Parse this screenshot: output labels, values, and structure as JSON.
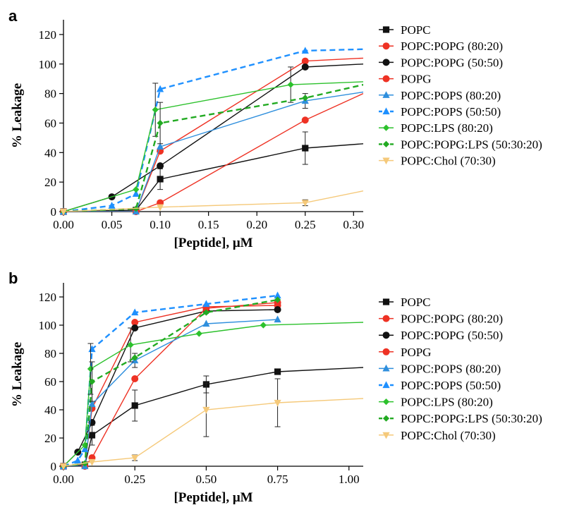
{
  "panels": [
    "a",
    "b"
  ],
  "chart_data": [
    {
      "type": "line",
      "panel": "a",
      "xlabel": "[Peptide], μM",
      "ylabel": "% Leakage",
      "xlim": [
        0,
        0.31
      ],
      "ylim": [
        0,
        130
      ],
      "xticks": [
        "0.00",
        "0.05",
        "0.10",
        "0.15",
        "0.20",
        "0.25",
        "0.30"
      ],
      "xtick_values": [
        0,
        0.05,
        0.1,
        0.15,
        0.2,
        0.25,
        0.3
      ],
      "yticks": [
        "0",
        "20",
        "40",
        "60",
        "80",
        "100",
        "120"
      ],
      "ytick_values": [
        0,
        20,
        40,
        60,
        80,
        100,
        120
      ],
      "legend_position": "right",
      "series": [
        {
          "name": "POPC",
          "color": "#111111",
          "marker": "square",
          "dashed": false,
          "x": [
            0,
            0.075,
            0.1,
            0.25
          ],
          "y": [
            0,
            1,
            22,
            43
          ],
          "err": [
            0,
            0,
            7,
            11
          ],
          "fit_x": [
            0,
            0.075,
            0.1,
            0.25,
            0.31
          ],
          "fit_y": [
            0,
            1,
            22,
            43,
            46
          ]
        },
        {
          "name": "POPC:POPG (80:20)",
          "color": "#ee3224",
          "marker": "circle",
          "dashed": false,
          "x": [
            0,
            0.075,
            0.1,
            0.25
          ],
          "y": [
            0,
            0,
            41,
            102
          ],
          "err": [
            0,
            0,
            0,
            0
          ],
          "fit_x": [
            0,
            0.075,
            0.1,
            0.25,
            0.31
          ],
          "fit_y": [
            0,
            0,
            41,
            102,
            104
          ]
        },
        {
          "name": "POPC:POPG (50:50)",
          "color": "#111111",
          "marker": "circle",
          "dashed": false,
          "x": [
            0,
            0.05,
            0.1,
            0.25
          ],
          "y": [
            0,
            10,
            31,
            98
          ],
          "err": [
            0,
            0,
            0,
            0
          ],
          "fit_x": [
            0,
            0.05,
            0.1,
            0.25,
            0.31
          ],
          "fit_y": [
            0,
            10,
            31,
            98,
            100
          ]
        },
        {
          "name": "POPG",
          "color": "#ee3224",
          "marker": "circle",
          "dashed": false,
          "x": [
            0,
            0.075,
            0.1,
            0.25
          ],
          "y": [
            0,
            0,
            6,
            62
          ],
          "err": [
            0,
            0,
            0,
            0
          ],
          "fit_x": [
            0,
            0.075,
            0.1,
            0.25,
            0.31
          ],
          "fit_y": [
            0,
            0,
            6,
            62,
            80
          ]
        },
        {
          "name": "POPC:POPS (80:20)",
          "color": "#2f8fdd",
          "marker": "triangle",
          "dashed": false,
          "x": [
            0,
            0.075,
            0.1,
            0.25
          ],
          "y": [
            0,
            0,
            44,
            75
          ],
          "err": [
            0,
            0,
            0,
            5
          ],
          "fit_x": [
            0,
            0.075,
            0.1,
            0.25,
            0.31
          ],
          "fit_y": [
            0,
            0,
            44,
            75,
            81
          ]
        },
        {
          "name": "POPC:POPS (50:50)",
          "color": "#1e90ff",
          "marker": "triangle",
          "dashed": true,
          "x": [
            0,
            0.05,
            0.075,
            0.1,
            0.25
          ],
          "y": [
            0,
            4,
            12,
            83,
            109
          ],
          "err": [
            0,
            0,
            0,
            0,
            0
          ],
          "fit_x": [
            0,
            0.05,
            0.075,
            0.1,
            0.25,
            0.31
          ],
          "fit_y": [
            0,
            4,
            12,
            83,
            109,
            110
          ]
        },
        {
          "name": "POPC:LPS (80:20)",
          "color": "#2cc12c",
          "marker": "diamond",
          "dashed": false,
          "x": [
            0,
            0.075,
            0.095,
            0.235
          ],
          "y": [
            0,
            15,
            69,
            86
          ],
          "err": [
            0,
            0,
            18,
            12
          ],
          "fit_x": [
            0,
            0.075,
            0.095,
            0.235,
            0.31
          ],
          "fit_y": [
            0,
            15,
            69,
            86,
            88
          ]
        },
        {
          "name": "POPC:POPG:LPS (50:30:20)",
          "color": "#22aa22",
          "marker": "diamond",
          "dashed": true,
          "x": [
            0,
            0.075,
            0.1,
            0.25
          ],
          "y": [
            0,
            2,
            60,
            77
          ],
          "err": [
            0,
            0,
            14,
            0
          ],
          "fit_x": [
            0,
            0.075,
            0.1,
            0.25,
            0.31
          ],
          "fit_y": [
            0,
            2,
            60,
            77,
            86
          ]
        },
        {
          "name": "POPC:Chol (70:30)",
          "color": "#f5c97a",
          "marker": "triangle-down",
          "dashed": false,
          "x": [
            0,
            0.1,
            0.25
          ],
          "y": [
            0,
            3,
            6
          ],
          "err": [
            0,
            0,
            2
          ],
          "fit_x": [
            0,
            0.1,
            0.25,
            0.31
          ],
          "fit_y": [
            0,
            3,
            6,
            14
          ]
        }
      ]
    },
    {
      "type": "line",
      "panel": "b",
      "xlabel": "[Peptide], μM",
      "ylabel": "% Leakage",
      "xlim": [
        0,
        1.05
      ],
      "ylim": [
        0,
        130
      ],
      "xticks": [
        "0.00",
        "0.25",
        "0.50",
        "0.75",
        "1.00"
      ],
      "xtick_values": [
        0,
        0.25,
        0.5,
        0.75,
        1.0
      ],
      "yticks": [
        "0",
        "20",
        "40",
        "60",
        "80",
        "100",
        "120"
      ],
      "ytick_values": [
        0,
        20,
        40,
        60,
        80,
        100,
        120
      ],
      "legend_position": "right",
      "series": [
        {
          "name": "POPC",
          "color": "#111111",
          "marker": "square",
          "dashed": false,
          "x": [
            0,
            0.075,
            0.1,
            0.25,
            0.5,
            0.75
          ],
          "y": [
            0,
            1,
            22,
            43,
            58,
            67
          ],
          "err": [
            0,
            0,
            7,
            11,
            6,
            2
          ],
          "fit_x": [
            0,
            0.075,
            0.1,
            0.25,
            0.5,
            0.75,
            1.05
          ],
          "fit_y": [
            0,
            1,
            22,
            43,
            58,
            67,
            70
          ]
        },
        {
          "name": "POPC:POPG (80:20)",
          "color": "#ee3224",
          "marker": "circle",
          "dashed": false,
          "x": [
            0,
            0.075,
            0.1,
            0.25,
            0.5,
            0.75
          ],
          "y": [
            0,
            0,
            41,
            102,
            113,
            114
          ],
          "err": [
            0,
            0,
            0,
            0,
            0,
            0
          ],
          "fit_x": [
            0,
            0.075,
            0.1,
            0.25,
            0.5,
            0.75
          ],
          "fit_y": [
            0,
            0,
            41,
            102,
            113,
            114
          ]
        },
        {
          "name": "POPC:POPG (50:50)",
          "color": "#111111",
          "marker": "circle",
          "dashed": false,
          "x": [
            0,
            0.05,
            0.1,
            0.25,
            0.5,
            0.75
          ],
          "y": [
            0,
            10,
            31,
            98,
            110,
            111
          ],
          "err": [
            0,
            0,
            0,
            0,
            0,
            0
          ],
          "fit_x": [
            0,
            0.05,
            0.1,
            0.25,
            0.5,
            0.75
          ],
          "fit_y": [
            0,
            10,
            31,
            98,
            110,
            111
          ]
        },
        {
          "name": "POPG",
          "color": "#ee3224",
          "marker": "circle",
          "dashed": false,
          "x": [
            0,
            0.075,
            0.1,
            0.25,
            0.5,
            0.75
          ],
          "y": [
            0,
            0,
            6,
            62,
            112,
            116
          ],
          "err": [
            0,
            0,
            0,
            0,
            0,
            0
          ],
          "fit_x": [
            0,
            0.075,
            0.1,
            0.25,
            0.5,
            0.75
          ],
          "fit_y": [
            0,
            0,
            6,
            62,
            112,
            116
          ]
        },
        {
          "name": "POPC:POPS (80:20)",
          "color": "#2f8fdd",
          "marker": "triangle",
          "dashed": false,
          "x": [
            0,
            0.075,
            0.1,
            0.25,
            0.5,
            0.75
          ],
          "y": [
            0,
            0,
            44,
            75,
            101,
            104
          ],
          "err": [
            0,
            0,
            0,
            5,
            0,
            0
          ],
          "fit_x": [
            0,
            0.075,
            0.1,
            0.25,
            0.5,
            0.75
          ],
          "fit_y": [
            0,
            0,
            44,
            75,
            101,
            104
          ]
        },
        {
          "name": "POPC:POPS (50:50)",
          "color": "#1e90ff",
          "marker": "triangle",
          "dashed": true,
          "x": [
            0,
            0.05,
            0.075,
            0.1,
            0.25,
            0.5,
            0.75
          ],
          "y": [
            0,
            4,
            12,
            83,
            109,
            115,
            121
          ],
          "err": [
            0,
            0,
            0,
            0,
            0,
            0,
            0
          ],
          "fit_x": [
            0,
            0.05,
            0.075,
            0.1,
            0.25,
            0.5,
            0.75
          ],
          "fit_y": [
            0,
            4,
            12,
            83,
            109,
            115,
            121
          ]
        },
        {
          "name": "POPC:LPS (80:20)",
          "color": "#2cc12c",
          "marker": "diamond",
          "dashed": false,
          "x": [
            0,
            0.075,
            0.095,
            0.235,
            0.475,
            0.7
          ],
          "y": [
            0,
            15,
            69,
            86,
            94,
            100
          ],
          "err": [
            0,
            0,
            18,
            12,
            0,
            0
          ],
          "fit_x": [
            0,
            0.075,
            0.095,
            0.235,
            0.475,
            0.7,
            1.05
          ],
          "fit_y": [
            0,
            15,
            69,
            86,
            94,
            100,
            102
          ]
        },
        {
          "name": "POPC:POPG:LPS (50:30:20)",
          "color": "#22aa22",
          "marker": "diamond",
          "dashed": true,
          "x": [
            0,
            0.075,
            0.1,
            0.25,
            0.5,
            0.75
          ],
          "y": [
            0,
            2,
            60,
            77,
            109,
            118
          ],
          "err": [
            0,
            0,
            14,
            0,
            0,
            0
          ],
          "fit_x": [
            0,
            0.075,
            0.1,
            0.25,
            0.5,
            0.75
          ],
          "fit_y": [
            0,
            2,
            60,
            77,
            109,
            118
          ]
        },
        {
          "name": "POPC:Chol (70:30)",
          "color": "#f5c97a",
          "marker": "triangle-down",
          "dashed": false,
          "x": [
            0,
            0.1,
            0.25,
            0.5,
            0.75
          ],
          "y": [
            0,
            3,
            6,
            40,
            45
          ],
          "err": [
            0,
            0,
            2,
            19,
            17
          ],
          "fit_x": [
            0,
            0.1,
            0.25,
            0.5,
            0.75,
            1.05
          ],
          "fit_y": [
            0,
            3,
            6,
            40,
            45,
            48
          ]
        }
      ]
    }
  ]
}
